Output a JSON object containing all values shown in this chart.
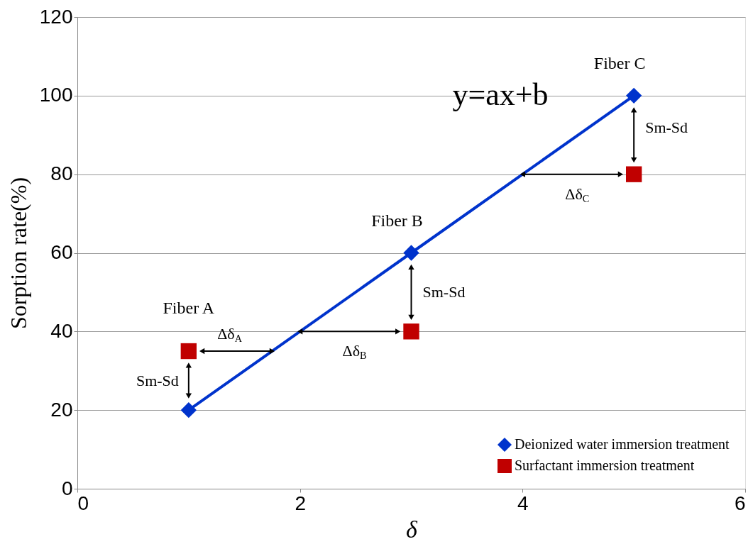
{
  "chart_data": {
    "type": "line",
    "xlabel": "δ",
    "ylabel": "Sorption rate(%)",
    "x": [
      1,
      3,
      5
    ],
    "series": [
      {
        "name": "Deionized water immersion treatment",
        "color": "#0033cc",
        "values": [
          20,
          60,
          100
        ],
        "marker": "diamond"
      },
      {
        "name": "Surfactant immersion treatment",
        "type": "scatter",
        "color": "#c00000",
        "values": [
          35,
          40,
          80
        ],
        "marker": "square"
      }
    ],
    "xlim": [
      0,
      6
    ],
    "xticks": [
      0,
      2,
      4,
      6
    ],
    "ylim": [
      0,
      120
    ],
    "yticks": [
      0,
      20,
      40,
      60,
      80,
      100,
      120
    ],
    "grid": "y",
    "legend": "bottom right",
    "annotations": [
      "Fiber A",
      "Fiber B",
      "Fiber C",
      "y=ax+b",
      "Sm-Sd",
      "Sm-Sd",
      "Sm-Sd",
      {
        "text": "Δδ$_{A}$",
        "x": 1.75,
        "y": 35
      },
      {
        "text": "Δδ$_{B}$",
        "x": 3,
        "y": 40
      },
      {
        "text": "Δδ$_{C}$",
        "x": 5,
        "y": 80
      }
    ]
  }
}
